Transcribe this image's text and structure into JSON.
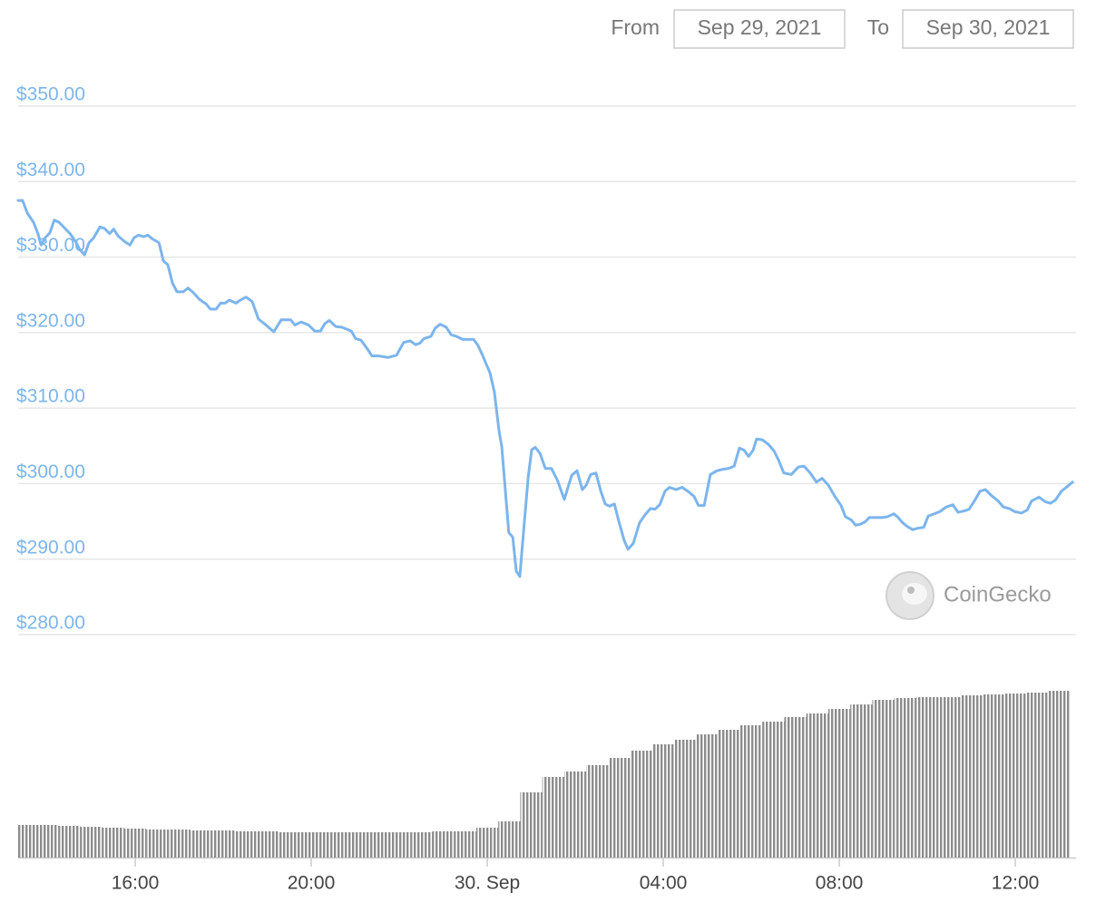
{
  "header": {
    "from_label": "From",
    "from_date": "Sep 29, 2021",
    "to_label": "To",
    "to_date": "Sep 30, 2021"
  },
  "watermark": "CoinGecko",
  "chart_data": {
    "type": "line",
    "x": [
      13.34,
      13.44,
      13.55,
      13.69,
      13.79,
      13.86,
      13.96,
      14.06,
      14.16,
      14.27,
      14.37,
      14.52,
      14.64,
      14.74,
      14.85,
      14.95,
      15.05,
      15.2,
      15.3,
      15.42,
      15.51,
      15.61,
      15.75,
      15.88,
      15.98,
      16.08,
      16.19,
      16.29,
      16.39,
      16.54,
      16.64,
      16.74,
      16.85,
      16.95,
      17.09,
      17.2,
      17.32,
      17.46,
      17.61,
      17.71,
      17.84,
      17.94,
      18.04,
      18.14,
      18.29,
      18.39,
      18.52,
      18.66,
      18.8,
      18.95,
      19.15,
      19.32,
      19.53,
      19.63,
      19.77,
      19.94,
      20.08,
      20.21,
      20.31,
      20.41,
      20.56,
      20.7,
      20.91,
      21.01,
      21.13,
      21.28,
      21.38,
      21.55,
      21.75,
      21.94,
      22.1,
      22.25,
      22.37,
      22.47,
      22.56,
      22.72,
      22.82,
      22.93,
      23.07,
      23.18,
      23.3,
      23.44,
      23.59,
      23.69,
      23.79,
      23.9,
      24.0,
      24.06,
      24.16,
      24.27,
      24.33,
      24.41,
      24.49,
      24.58,
      24.66,
      24.74,
      24.82,
      24.93,
      25.01,
      25.09,
      25.2,
      25.32,
      25.46,
      25.59,
      25.75,
      25.92,
      26.04,
      26.16,
      26.25,
      26.35,
      26.47,
      26.58,
      26.68,
      26.78,
      26.89,
      26.99,
      27.11,
      27.2,
      27.32,
      27.46,
      27.59,
      27.71,
      27.81,
      27.92,
      28.04,
      28.14,
      28.29,
      28.43,
      28.58,
      28.7,
      28.8,
      28.93,
      29.07,
      29.22,
      29.36,
      29.48,
      29.61,
      29.73,
      29.84,
      29.94,
      30.04,
      30.12,
      30.25,
      30.39,
      30.52,
      30.62,
      30.74,
      30.91,
      31.07,
      31.2,
      31.34,
      31.48,
      31.61,
      31.75,
      31.9,
      32.04,
      32.14,
      32.27,
      32.37,
      32.47,
      32.58,
      32.68,
      32.82,
      32.97,
      33.09,
      33.24,
      33.34,
      33.44,
      33.55,
      33.67,
      33.79,
      33.92,
      34.02,
      34.16,
      34.29,
      34.43,
      34.58,
      34.7,
      34.85,
      34.95,
      35.09,
      35.2,
      35.32,
      35.46,
      35.61,
      35.73,
      35.86,
      35.98,
      36.14,
      36.27,
      36.37,
      36.54,
      36.68,
      36.8,
      36.91,
      37.05,
      37.18,
      37.3
    ],
    "series": [
      {
        "color": "#7cb5ec",
        "values": [
          337.5,
          337.5,
          335.8,
          334.6,
          333.1,
          331.6,
          332.6,
          333.2,
          334.9,
          334.6,
          334.0,
          333.1,
          332.1,
          331.0,
          330.3,
          331.9,
          332.5,
          334.0,
          333.8,
          333.1,
          333.7,
          332.8,
          332.1,
          331.6,
          332.6,
          332.9,
          332.7,
          332.9,
          332.4,
          331.9,
          329.5,
          329.0,
          326.5,
          325.4,
          325.4,
          325.9,
          325.3,
          324.4,
          323.8,
          323.1,
          323.1,
          323.9,
          323.9,
          324.3,
          323.9,
          324.3,
          324.7,
          324.1,
          321.8,
          321.1,
          320.1,
          321.7,
          321.7,
          321.0,
          321.4,
          321.0,
          320.2,
          320.2,
          321.2,
          321.6,
          320.8,
          320.7,
          320.2,
          319.2,
          319.0,
          317.8,
          316.9,
          316.9,
          316.7,
          317.0,
          318.7,
          318.9,
          318.4,
          318.6,
          319.2,
          319.5,
          320.6,
          321.1,
          320.7,
          319.7,
          319.5,
          319.1,
          319.1,
          319.1,
          318.3,
          316.9,
          315.5,
          314.7,
          312.2,
          306.9,
          304.9,
          299.2,
          293.5,
          292.9,
          288.4,
          287.7,
          293.3,
          300.8,
          304.5,
          304.8,
          304.0,
          302.0,
          302.0,
          300.5,
          297.9,
          301.1,
          301.7,
          299.2,
          299.8,
          301.2,
          301.4,
          299.0,
          297.3,
          297.0,
          297.3,
          295.0,
          292.5,
          291.3,
          292.1,
          294.8,
          295.9,
          296.7,
          296.6,
          297.2,
          299.0,
          299.5,
          299.2,
          299.5,
          298.9,
          298.3,
          297.1,
          297.1,
          301.2,
          301.7,
          301.9,
          302.0,
          302.3,
          304.7,
          304.4,
          303.6,
          304.4,
          305.9,
          305.8,
          305.2,
          304.3,
          303.1,
          301.4,
          301.2,
          302.2,
          302.3,
          301.4,
          300.2,
          300.7,
          299.8,
          298.3,
          297.1,
          295.6,
          295.2,
          294.5,
          294.6,
          294.9,
          295.5,
          295.5,
          295.5,
          295.6,
          296.0,
          295.5,
          294.8,
          294.3,
          293.9,
          294.1,
          294.2,
          295.7,
          296.0,
          296.3,
          296.9,
          297.2,
          296.2,
          296.4,
          296.6,
          297.9,
          299.0,
          299.2,
          298.4,
          297.7,
          296.9,
          296.7,
          296.3,
          296.1,
          296.5,
          297.7,
          298.2,
          297.6,
          297.4,
          297.8,
          299.0,
          299.6,
          300.2
        ]
      }
    ],
    "xlim": [
      13.34,
      37.38
    ],
    "xticks": [
      {
        "value": 16,
        "label": "16:00"
      },
      {
        "value": 20,
        "label": "20:00"
      },
      {
        "value": 24,
        "label": "30. Sep"
      },
      {
        "value": 28,
        "label": "04:00"
      },
      {
        "value": 32,
        "label": "08:00"
      },
      {
        "value": 36,
        "label": "12:00"
      }
    ],
    "ylim": [
      280,
      350
    ],
    "yticks": [
      {
        "value": 350,
        "label": "$350.00"
      },
      {
        "value": 340,
        "label": "$340.00"
      },
      {
        "value": 330,
        "label": "$330.00"
      },
      {
        "value": 320,
        "label": "$320.00"
      },
      {
        "value": 310,
        "label": "$310.00"
      },
      {
        "value": 300,
        "label": "$300.00"
      },
      {
        "value": 290,
        "label": "$290.00"
      },
      {
        "value": 280,
        "label": "$280.00"
      }
    ],
    "grid": true,
    "volume": {
      "color": "#8c8c8c",
      "ylim": [
        0,
        230
      ],
      "x": [
        13.5,
        14,
        14.5,
        15,
        15.5,
        16,
        16.5,
        17,
        17.5,
        18,
        18.5,
        19,
        19.5,
        20,
        20.5,
        21,
        21.5,
        22,
        22.5,
        23,
        23.5,
        24,
        24.5,
        25,
        25.5,
        26,
        26.5,
        27,
        27.5,
        28,
        28.5,
        29,
        29.5,
        30,
        30.5,
        31,
        31.5,
        32,
        32.5,
        33,
        33.5,
        34,
        34.5,
        35,
        35.5,
        36,
        36.5,
        37
      ],
      "values": [
        36,
        36,
        35,
        34,
        33,
        32,
        31,
        31,
        30,
        30,
        29,
        29,
        28,
        28,
        28,
        28,
        28,
        28,
        28,
        29,
        29,
        33,
        40,
        72,
        89,
        95,
        102,
        110,
        118,
        125,
        130,
        136,
        141,
        146,
        150,
        155,
        159,
        164,
        169,
        174,
        176,
        177,
        177,
        179,
        180,
        181,
        182,
        184
      ]
    }
  }
}
